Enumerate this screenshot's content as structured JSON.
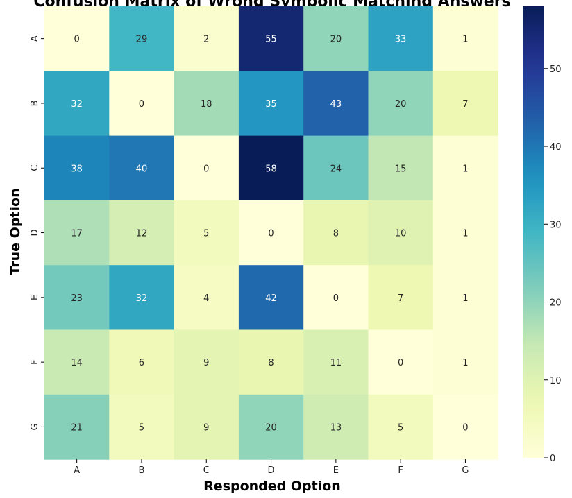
{
  "chart_data": {
    "type": "heatmap",
    "title": "Confusion Matrix of Wrong Symbolic Matching Answers",
    "xlabel": "Responded Option",
    "ylabel": "True Option",
    "x_categories": [
      "A",
      "B",
      "C",
      "D",
      "E",
      "F",
      "G"
    ],
    "y_categories": [
      "A",
      "B",
      "C",
      "D",
      "E",
      "F",
      "G"
    ],
    "values": [
      [
        0,
        29,
        2,
        55,
        20,
        33,
        1
      ],
      [
        32,
        0,
        18,
        35,
        43,
        20,
        7
      ],
      [
        38,
        40,
        0,
        58,
        24,
        15,
        1
      ],
      [
        17,
        12,
        5,
        0,
        8,
        10,
        1
      ],
      [
        23,
        32,
        4,
        42,
        0,
        7,
        1
      ],
      [
        14,
        6,
        9,
        8,
        11,
        0,
        1
      ],
      [
        21,
        5,
        9,
        20,
        13,
        5,
        0
      ]
    ],
    "colormap": "YlGnBu",
    "colorbar": {
      "range": [
        0,
        58
      ],
      "ticks": [
        0,
        10,
        20,
        30,
        40,
        50
      ]
    },
    "annotated": true
  }
}
